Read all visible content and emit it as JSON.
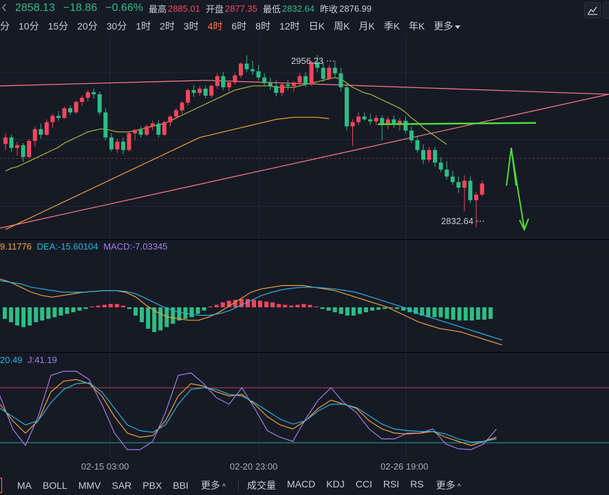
{
  "quote": {
    "last": "2858.13",
    "change": "−18.86",
    "change_pct": "−0.66%",
    "high_label": "最高",
    "high": "2885.01",
    "open_label": "开盘",
    "open": "2877.35",
    "low_label": "最低",
    "low": "2832.64",
    "prev_close_label": "昨收",
    "prev_close": "2876.99"
  },
  "timeframes": [
    "分",
    "10分",
    "15分",
    "20分",
    "30分",
    "1时",
    "2时",
    "3时",
    "4时",
    "6时",
    "8时",
    "12时",
    "日K",
    "周K",
    "月K",
    "季K",
    "年K"
  ],
  "active_timeframe": "4时",
  "timeframe_more": "更多",
  "price_annotations": {
    "high_marker": "2956.23",
    "low_marker": "2832.64"
  },
  "macd_legend": {
    "dif": "9.11776",
    "dea_label": "DEA:",
    "dea": "-15.60104",
    "macd_label": "MACD:",
    "macd": "-7.03345"
  },
  "kdj_legend": {
    "d": "20.49",
    "j_label": "J:",
    "j": "41.19"
  },
  "time_axis": [
    "02-15 03:00",
    "02-20 23:00",
    "02-26 19:00"
  ],
  "bottom_main_indicators": [
    "MA",
    "BOLL",
    "MMV",
    "SAR",
    "PBX",
    "BBI"
  ],
  "bottom_main_more": "更多",
  "bottom_sub_indicators": [
    "成交量",
    "MACD",
    "KDJ",
    "CCI",
    "RSI",
    "RS"
  ],
  "bottom_sub_more": "更多",
  "colors": {
    "up": "#f6465d",
    "down": "#2ebd85",
    "ma_short": "#a8b93b",
    "ma_long": "#f0a33a",
    "trend_line": "#f2777f",
    "support_line": "#4cdc3b",
    "dif": "#f0a33a",
    "dea": "#2bb3e0",
    "j_line": "#a47ee8",
    "active_tf": "#ff7a3d"
  },
  "icons": {
    "left_edge": "chevron-left-icon",
    "toolbar": "draw-tool-icon"
  },
  "chart_data": {
    "type": "candlestick",
    "ylim": [
      2825,
      2968
    ],
    "candles": [
      [
        2892.3,
        2900.0,
        2888.0,
        2897.0
      ],
      [
        2897.0,
        2899.0,
        2886.5,
        2889.5
      ],
      [
        2889.5,
        2894.0,
        2884.0,
        2891.5
      ],
      [
        2891.5,
        2893.0,
        2879.5,
        2883.0
      ],
      [
        2883.0,
        2896.0,
        2882.0,
        2894.5
      ],
      [
        2894.5,
        2905.0,
        2890.5,
        2903.0
      ],
      [
        2903.0,
        2907.0,
        2896.0,
        2899.0
      ],
      [
        2899.0,
        2910.0,
        2898.0,
        2908.0
      ],
      [
        2908.0,
        2914.0,
        2904.0,
        2912.5
      ],
      [
        2912.5,
        2916.0,
        2909.0,
        2911.0
      ],
      [
        2911.0,
        2919.0,
        2910.5,
        2918.0
      ],
      [
        2918.0,
        2920.0,
        2913.0,
        2915.0
      ],
      [
        2915.0,
        2923.5,
        2914.0,
        2922.5
      ],
      [
        2922.5,
        2927.0,
        2920.0,
        2925.5
      ],
      [
        2925.5,
        2931.0,
        2923.0,
        2929.5
      ],
      [
        2929.5,
        2932.0,
        2925.0,
        2928.0
      ],
      [
        2928.0,
        2930.0,
        2913.0,
        2915.0
      ],
      [
        2915.0,
        2918.0,
        2895.0,
        2897.0
      ],
      [
        2897.0,
        2900.0,
        2887.0,
        2888.5
      ],
      [
        2888.5,
        2896.0,
        2886.0,
        2894.0
      ],
      [
        2894.0,
        2897.0,
        2885.0,
        2888.0
      ],
      [
        2888.0,
        2901.0,
        2887.0,
        2900.0
      ],
      [
        2900.0,
        2903.0,
        2895.0,
        2902.5
      ],
      [
        2902.5,
        2905.0,
        2897.0,
        2899.0
      ],
      [
        2899.0,
        2906.0,
        2898.0,
        2905.0
      ],
      [
        2905.0,
        2909.0,
        2902.0,
        2907.0
      ],
      [
        2907.0,
        2909.5,
        2897.0,
        2899.0
      ],
      [
        2899.0,
        2909.0,
        2898.0,
        2908.0
      ],
      [
        2908.0,
        2913.0,
        2905.0,
        2912.0
      ],
      [
        2912.0,
        2918.0,
        2910.0,
        2916.5
      ],
      [
        2916.5,
        2923.0,
        2914.0,
        2922.0
      ],
      [
        2922.0,
        2932.0,
        2920.0,
        2931.0
      ],
      [
        2931.0,
        2934.5,
        2926.0,
        2929.0
      ],
      [
        2929.0,
        2934.0,
        2927.0,
        2932.0
      ],
      [
        2932.0,
        2934.0,
        2925.0,
        2927.0
      ],
      [
        2927.0,
        2935.0,
        2925.5,
        2934.0
      ],
      [
        2934.0,
        2943.0,
        2932.0,
        2941.0
      ],
      [
        2941.0,
        2944.0,
        2931.0,
        2933.0
      ],
      [
        2933.0,
        2938.0,
        2930.0,
        2936.5
      ],
      [
        2936.5,
        2943.0,
        2935.0,
        2941.5
      ],
      [
        2941.5,
        2951.0,
        2940.0,
        2950.0
      ],
      [
        2950.0,
        2956.0,
        2944.0,
        2946.0
      ],
      [
        2946.0,
        2952.0,
        2942.0,
        2944.5
      ],
      [
        2944.5,
        2949.0,
        2938.0,
        2940.0
      ],
      [
        2940.0,
        2943.0,
        2934.0,
        2936.0
      ],
      [
        2936.0,
        2940.0,
        2931.0,
        2934.0
      ],
      [
        2934.0,
        2938.0,
        2926.5,
        2929.0
      ],
      [
        2929.0,
        2936.0,
        2927.0,
        2935.0
      ],
      [
        2935.0,
        2938.5,
        2931.0,
        2934.0
      ],
      [
        2934.0,
        2937.5,
        2930.0,
        2936.5
      ],
      [
        2936.5,
        2943.0,
        2934.0,
        2941.0
      ],
      [
        2941.0,
        2944.0,
        2933.0,
        2935.0
      ],
      [
        2935.0,
        2952.0,
        2934.0,
        2951.0
      ],
      [
        2951.0,
        2956.2,
        2944.0,
        2947.0
      ],
      [
        2947.0,
        2951.0,
        2937.0,
        2939.0
      ],
      [
        2939.0,
        2949.0,
        2938.0,
        2947.0
      ],
      [
        2947.0,
        2952.0,
        2940.0,
        2943.0
      ],
      [
        2943.0,
        2947.0,
        2930.0,
        2933.0
      ],
      [
        2933.0,
        2936.0,
        2902.0,
        2905.0
      ],
      [
        2905.0,
        2910.0,
        2891.0,
        2908.0
      ],
      [
        2908.0,
        2915.0,
        2906.0,
        2912.0
      ],
      [
        2912.0,
        2915.0,
        2909.0,
        2910.0
      ],
      [
        2910.0,
        2914.0,
        2906.0,
        2908.5
      ],
      [
        2908.5,
        2913.0,
        2906.0,
        2911.0
      ],
      [
        2911.0,
        2913.0,
        2895.0,
        2906.0
      ],
      [
        2906.0,
        2912.0,
        2903.0,
        2910.0
      ],
      [
        2910.0,
        2913.0,
        2904.0,
        2907.0
      ],
      [
        2907.0,
        2911.0,
        2902.0,
        2909.0
      ],
      [
        2909.0,
        2912.0,
        2900.0,
        2902.0
      ],
      [
        2902.0,
        2905.0,
        2893.0,
        2895.0
      ],
      [
        2895.0,
        2898.0,
        2886.0,
        2888.0
      ],
      [
        2888.0,
        2892.0,
        2878.0,
        2881.0
      ],
      [
        2881.0,
        2890.0,
        2879.0,
        2888.0
      ],
      [
        2888.0,
        2890.0,
        2876.0,
        2879.0
      ],
      [
        2879.0,
        2883.0,
        2872.0,
        2874.0
      ],
      [
        2874.0,
        2880.0,
        2867.0,
        2869.0
      ],
      [
        2869.0,
        2873.0,
        2863.0,
        2865.0
      ],
      [
        2865.0,
        2869.0,
        2857.0,
        2861.0
      ],
      [
        2861.0,
        2870.0,
        2844.0,
        2866.0
      ],
      [
        2866.0,
        2869.0,
        2850.0,
        2852.0
      ],
      [
        2852.0,
        2858.0,
        2832.6,
        2856.0
      ],
      [
        2856.0,
        2866.0,
        2855.0,
        2864.0
      ]
    ],
    "ma_short": [
      2873,
      2875,
      2876,
      2878,
      2880,
      2882,
      2884,
      2886,
      2888,
      2890,
      2893,
      2895,
      2897,
      2899,
      2901,
      2902,
      2903,
      2903,
      2902,
      2901,
      2901,
      2901,
      2902,
      2903,
      2904,
      2905,
      2906,
      2907,
      2909,
      2911,
      2913,
      2915,
      2917,
      2919,
      2921,
      2923,
      2925,
      2927,
      2929,
      2931,
      2932,
      2933,
      2934,
      2934,
      2934,
      2934,
      2933,
      2933,
      2933,
      2933,
      2934,
      2935,
      2936,
      2937,
      2938,
      2939,
      2940,
      2939,
      2936,
      2933,
      2931,
      2929,
      2928,
      2926,
      2924,
      2922,
      2920,
      2918,
      2915,
      2911,
      2908,
      2904,
      2901,
      2898,
      2895,
      2892
    ],
    "ma_long": [
      2831,
      2833,
      2835,
      2837,
      2839,
      2841,
      2843,
      2845,
      2847,
      2849,
      2851,
      2853,
      2855,
      2857,
      2859,
      2861,
      2863,
      2865,
      2867,
      2869,
      2871,
      2873,
      2875,
      2877,
      2879,
      2881,
      2883,
      2885,
      2887,
      2889,
      2891,
      2893,
      2895,
      2897,
      2898,
      2899,
      2900,
      2901,
      2902,
      2903,
      2904,
      2905,
      2906,
      2907,
      2908,
      2909,
      2910,
      2910.5,
      2911,
      2911.5,
      2911.5,
      2911.5,
      2911.5,
      2911.5,
      2911,
      2910.5
    ],
    "trend_line_upper": [
      [
        0,
        2934
      ],
      [
        300,
        2938
      ],
      [
        885,
        2928
      ]
    ],
    "trend_line_lower": [
      [
        0,
        2832
      ],
      [
        885,
        2928
      ]
    ],
    "support_level": 2907,
    "dashed_ref_level": 2882,
    "macd_hist": [
      -7,
      -9,
      -11,
      -12,
      -11,
      -9,
      -8,
      -7,
      -6,
      -5,
      -4,
      -3,
      -2,
      -1,
      0.5,
      1,
      1.5,
      2,
      2,
      1,
      -1,
      -5,
      -9,
      -13,
      -15,
      -14,
      -12,
      -10,
      -8,
      -7,
      -6,
      -4,
      -2,
      0.5,
      1.5,
      3,
      4,
      4.5,
      5,
      5,
      4.5,
      4,
      3.5,
      3,
      2,
      1.5,
      1,
      1.5,
      2,
      1.5,
      0.5,
      -1,
      -2,
      -3,
      -4,
      -5,
      -5,
      -4,
      -3,
      -2,
      -1.5,
      -1,
      -0.5,
      -1,
      -2,
      -3,
      -4,
      -5,
      -6,
      -6,
      -6,
      -7,
      -7.5,
      -8,
      -8,
      -8,
      -7.5,
      -7.5,
      -7
    ],
    "macd_dif": [
      8,
      6,
      3,
      0,
      -2,
      -3,
      -2,
      -1,
      0,
      0.5,
      1,
      1,
      0,
      -3,
      -8,
      -12,
      -15,
      -16,
      -17,
      -17,
      -15,
      -12,
      -8,
      -4,
      0,
      2,
      3,
      4,
      4,
      4,
      3,
      2,
      1,
      -1,
      -3,
      -5,
      -7,
      -9,
      -12,
      -15,
      -18,
      -20,
      -22,
      -23,
      -24,
      -26,
      -28,
      -30,
      -32
    ],
    "macd_dea": [
      7,
      6,
      5,
      3,
      2,
      1,
      0,
      0,
      0,
      0.5,
      1,
      1,
      0.5,
      -1,
      -4,
      -7,
      -10,
      -12,
      -13,
      -14,
      -14,
      -13,
      -11,
      -8,
      -5,
      -2,
      0,
      1.5,
      2.5,
      3,
      3,
      2.5,
      2,
      1,
      0,
      -2,
      -4,
      -6,
      -8,
      -10,
      -13,
      -15,
      -17,
      -19,
      -21,
      -23,
      -25,
      -27,
      -29
    ],
    "kdj_k": [
      60,
      40,
      25,
      40,
      75,
      88,
      90,
      85,
      70,
      45,
      25,
      20,
      22,
      40,
      70,
      85,
      82,
      75,
      70,
      72,
      60,
      45,
      35,
      30,
      40,
      55,
      65,
      60,
      55,
      40,
      30,
      25,
      24,
      25,
      27,
      20,
      15,
      10,
      15,
      20
    ],
    "kdj_d": [
      55,
      45,
      35,
      40,
      62,
      78,
      85,
      86,
      75,
      55,
      35,
      28,
      26,
      35,
      60,
      78,
      80,
      78,
      72,
      70,
      62,
      52,
      42,
      36,
      40,
      52,
      60,
      60,
      56,
      46,
      36,
      30,
      28,
      27,
      27,
      24,
      18,
      14,
      15,
      18
    ],
    "kdj_j": [
      70,
      30,
      10,
      45,
      95,
      100,
      100,
      90,
      60,
      25,
      5,
      5,
      15,
      50,
      95,
      98,
      85,
      68,
      60,
      80,
      55,
      28,
      20,
      15,
      42,
      65,
      80,
      62,
      50,
      30,
      18,
      18,
      25,
      25,
      30,
      12,
      6,
      5,
      12,
      30
    ],
    "kdj_upper_level": 80,
    "kdj_lower_level": 20
  }
}
